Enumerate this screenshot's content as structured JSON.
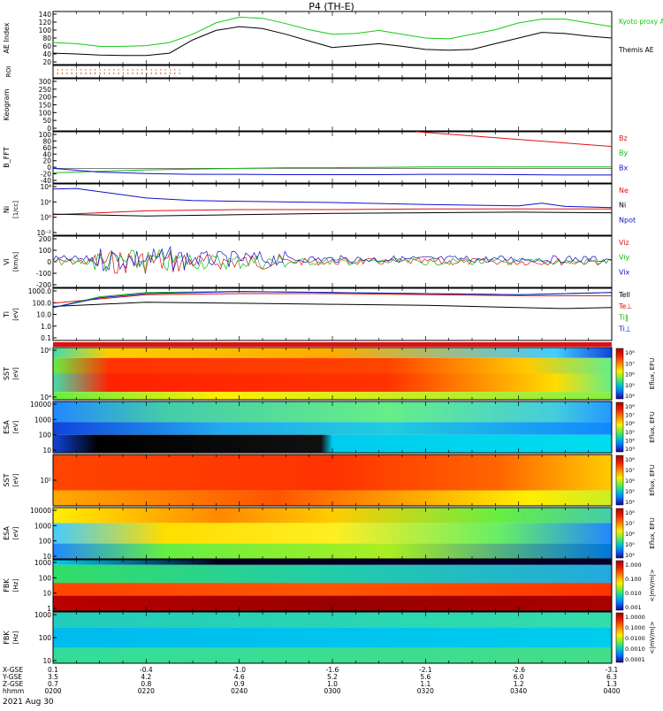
{
  "title": "P4 (TH-E)",
  "date_label": "2021 Aug 30",
  "colors": {
    "ae_kyoto": "#11cc11",
    "ae_themis": "#000000",
    "red": "#dd1111",
    "green": "#11bb11",
    "blue": "#1111cc",
    "black": "#000000"
  },
  "chart_data": [
    {
      "panel": "ae",
      "type": "line",
      "ylabel": "AE Index",
      "yticks": [
        "140",
        "120",
        "100",
        "80",
        "60",
        "40",
        "20"
      ],
      "ylim": [
        0,
        140
      ],
      "series": [
        {
          "name": "Kyoto proxy AE",
          "color": "#11cc11",
          "x": [
            0,
            5,
            10,
            15,
            20,
            25,
            30,
            35,
            40,
            45,
            50,
            55,
            60,
            65,
            70,
            75,
            80,
            85,
            90,
            95,
            100,
            105,
            110,
            115,
            120
          ],
          "values": [
            58,
            55,
            48,
            48,
            50,
            58,
            80,
            110,
            125,
            122,
            108,
            92,
            80,
            82,
            90,
            80,
            70,
            68,
            80,
            92,
            110,
            120,
            120,
            110,
            100
          ]
        },
        {
          "name": "Themis AE",
          "color": "#000000",
          "x": [
            0,
            5,
            10,
            15,
            20,
            25,
            30,
            35,
            40,
            45,
            50,
            55,
            60,
            65,
            70,
            75,
            80,
            85,
            90,
            95,
            100,
            105,
            110,
            115,
            120
          ],
          "values": [
            30,
            28,
            25,
            24,
            24,
            30,
            65,
            90,
            100,
            95,
            80,
            62,
            45,
            50,
            55,
            48,
            40,
            38,
            40,
            55,
            70,
            85,
            82,
            75,
            70
          ]
        }
      ],
      "legend": [
        "Kyoto proxy AE",
        "Themis AE"
      ]
    },
    {
      "panel": "roi",
      "type": "scatter",
      "ylabel": "ROI"
    },
    {
      "panel": "keogram",
      "type": "heatmap",
      "ylabel": "Keogram",
      "yticks": [
        "300",
        "250",
        "200",
        "150",
        "100",
        "50",
        "0"
      ],
      "ylim": [
        0,
        300
      ]
    },
    {
      "panel": "bfield",
      "type": "line",
      "ylabel": "B_FFT",
      "yticks": [
        "100",
        "80",
        "60",
        "40",
        "20",
        "0",
        "-20",
        "-40"
      ],
      "ylim": [
        -40,
        100
      ],
      "series": [
        {
          "name": "Bz",
          "color": "#dd1111",
          "x": [
            78,
            120
          ],
          "values": [
            100,
            60
          ]
        },
        {
          "name": "By",
          "color": "#11bb11",
          "x": [
            0,
            10,
            20,
            30,
            40,
            50,
            60,
            70,
            80,
            90,
            100,
            110,
            120
          ],
          "values": [
            -12,
            -8,
            -4,
            -2,
            0,
            2,
            2,
            3,
            4,
            4,
            4,
            4,
            4
          ]
        },
        {
          "name": "Bx",
          "color": "#1111cc",
          "x": [
            0,
            5,
            10,
            20,
            30,
            40,
            50,
            60,
            70,
            80,
            90,
            100,
            110,
            120
          ],
          "values": [
            0,
            -5,
            -10,
            -14,
            -16,
            -16,
            -17,
            -17,
            -17,
            -16,
            -16,
            -17,
            -18,
            -18
          ]
        }
      ],
      "legend": [
        "Bz",
        "By",
        "Bx"
      ]
    },
    {
      "panel": "density",
      "type": "line",
      "ylabel": "Ni",
      "ylabel2": "[1/cc]",
      "yticks": [
        "10⁴",
        "10²",
        "10⁰",
        "10⁻²"
      ],
      "ylim_log": [
        -3,
        5
      ],
      "series": [
        {
          "name": "Ne",
          "color": "#dd1111",
          "x": [
            0,
            20,
            40,
            60,
            80,
            100,
            120
          ],
          "values_log": [
            0.2,
            0.8,
            1.0,
            1.0,
            1.1,
            1.1,
            1.1
          ]
        },
        {
          "name": "Ni",
          "color": "#000000",
          "x": [
            0,
            20,
            40,
            60,
            80,
            100,
            120
          ],
          "values_log": [
            0.3,
            0.0,
            0.2,
            0.4,
            0.5,
            0.6,
            0.5
          ]
        },
        {
          "name": "Npot",
          "color": "#1111cc",
          "x": [
            0,
            5,
            10,
            20,
            30,
            40,
            60,
            80,
            100,
            105,
            110,
            120
          ],
          "values_log": [
            4.2,
            4.3,
            3.8,
            2.8,
            2.4,
            2.3,
            2.1,
            1.8,
            1.6,
            2.0,
            1.5,
            1.3
          ]
        }
      ],
      "legend": [
        "Ne",
        "Ni",
        "Npot"
      ]
    },
    {
      "panel": "velocity",
      "type": "line",
      "ylabel": "Vi",
      "ylabel2": "[km/s]",
      "yticks": [
        "200",
        "100",
        "0",
        "-100",
        "-200"
      ],
      "ylim": [
        -200,
        200
      ],
      "series": [
        {
          "name": "Viz",
          "color": "#dd1111"
        },
        {
          "name": "Viy",
          "color": "#11bb11"
        },
        {
          "name": "Vix",
          "color": "#1111cc"
        }
      ],
      "legend": [
        "Viz",
        "Viy",
        "Vix"
      ]
    },
    {
      "panel": "temperature",
      "type": "line",
      "ylabel": "Ti",
      "ylabel2": "[eV]",
      "yticks": [
        "1000.0",
        "100.0",
        "10.0",
        "1.0",
        "0.1"
      ],
      "ylim_log": [
        -1.3,
        3.6
      ],
      "series": [
        {
          "name": "Tell",
          "color": "#000000",
          "x": [
            0,
            10,
            20,
            40,
            60,
            80,
            100,
            110,
            120
          ],
          "values_log": [
            1.9,
            2.1,
            2.3,
            2.2,
            2.1,
            2.0,
            1.8,
            1.7,
            1.8
          ]
        },
        {
          "name": "Te⊥",
          "color": "#dd1111",
          "x": [
            0,
            10,
            20,
            40,
            60,
            80,
            100,
            120
          ],
          "values_log": [
            2.2,
            2.6,
            3.0,
            3.1,
            3.1,
            3.0,
            2.9,
            2.9
          ]
        },
        {
          "name": "Ti‖",
          "color": "#11bb11",
          "x": [
            0,
            10,
            20,
            40,
            60,
            80,
            100,
            120
          ],
          "values_log": [
            1.8,
            2.8,
            3.2,
            3.3,
            3.2,
            3.1,
            3.0,
            3.2
          ]
        },
        {
          "name": "Ti⊥",
          "color": "#1111cc",
          "x": [
            0,
            10,
            20,
            40,
            60,
            80,
            100,
            120
          ],
          "values_log": [
            1.8,
            2.7,
            3.1,
            3.3,
            3.2,
            3.1,
            3.0,
            3.2
          ]
        }
      ],
      "legend": [
        "Tell",
        "Te⊥",
        "Ti‖",
        "Ti⊥"
      ]
    },
    {
      "panel": "sst_i",
      "type": "heatmap",
      "ylabel": "SST",
      "ylabel2": "[eV]",
      "yticks": [
        "10⁶",
        "10⁴"
      ],
      "colorbar": [
        "10⁸",
        "10⁷",
        "10⁶",
        "10⁵",
        "10⁴"
      ],
      "colorbar_label": "Eflux, EFU"
    },
    {
      "panel": "esa_i",
      "type": "heatmap",
      "ylabel": "ESA",
      "ylabel2": "[eV]",
      "yticks": [
        "10000",
        "1000",
        "100",
        "10"
      ],
      "colorbar": [
        "10⁸",
        "10⁷",
        "10⁶",
        "10⁵",
        "10⁴",
        "10³"
      ],
      "colorbar_label": "Eflux, EFU"
    },
    {
      "panel": "sst_e",
      "type": "heatmap",
      "ylabel": "SST",
      "ylabel2": "[eV]",
      "yticks": [
        "10⁵"
      ],
      "colorbar": [
        "10⁸",
        "10⁷",
        "10⁶",
        "10⁵",
        "10⁴"
      ],
      "colorbar_label": "Eflux, EFU"
    },
    {
      "panel": "esa_e",
      "type": "heatmap",
      "ylabel": "ESA",
      "ylabel2": "[eV]",
      "yticks": [
        "10000",
        "1000",
        "100",
        "10"
      ],
      "colorbar": [
        "10⁸",
        "10⁷",
        "10⁶",
        "10⁵",
        "10⁴"
      ],
      "colorbar_label": "Eflux, EFU"
    },
    {
      "panel": "fbk_b",
      "type": "heatmap",
      "ylabel": "FBK",
      "ylabel2": "[Hz]",
      "yticks": [
        "1000",
        "100",
        "10",
        "1"
      ],
      "colorbar": [
        "1.000",
        "0.100",
        "0.010",
        "0.001"
      ],
      "colorbar_label": "<|mV/m|>"
    },
    {
      "panel": "fbk_e",
      "type": "heatmap",
      "ylabel": "FBK",
      "ylabel2": "[Hz]",
      "yticks": [
        "1000",
        "100",
        "10"
      ],
      "colorbar": [
        "1.0000",
        "0.1000",
        "0.0100",
        "0.0010",
        "0.0001"
      ],
      "colorbar_label": "<|mV/m|>"
    }
  ],
  "time_axis": {
    "rows": [
      {
        "label": "X-GSE",
        "values": [
          "0.1",
          "-0.4",
          "-1.0",
          "-1.6",
          "-2.1",
          "-2.6",
          "-3.1"
        ]
      },
      {
        "label": "Y-GSE",
        "values": [
          "3.5",
          "4.2",
          "4.6",
          "5.2",
          "5.6",
          "6.0",
          "6.3"
        ]
      },
      {
        "label": "Z-GSE",
        "values": [
          "0.7",
          "0.8",
          "0.9",
          "1.0",
          "1.1",
          "1.2",
          "1.3"
        ]
      },
      {
        "label": "hhmm",
        "values": [
          "0200",
          "0220",
          "0240",
          "0300",
          "0320",
          "0340",
          "0400"
        ]
      }
    ]
  }
}
